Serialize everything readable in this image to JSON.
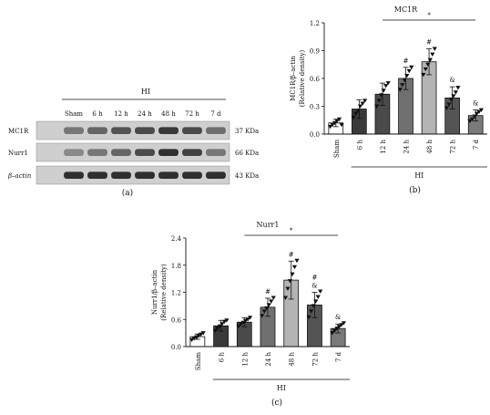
{
  "blot": {
    "group_label": "HI",
    "lanes": [
      "Sham",
      "6 h",
      "12 h",
      "24 h",
      "48 h",
      "72 h",
      "7 d"
    ],
    "rows": [
      {
        "name": "MC1R",
        "kda": "37 KDa",
        "intensity": [
          0.45,
          0.55,
          0.65,
          0.7,
          0.8,
          0.7,
          0.5
        ]
      },
      {
        "name": "Nurr1",
        "kda": "66 KDa",
        "intensity": [
          0.35,
          0.45,
          0.55,
          0.7,
          0.85,
          0.75,
          0.45
        ]
      },
      {
        "name": "β–actin",
        "kda": "43 KDa",
        "intensity": [
          0.85,
          0.85,
          0.85,
          0.85,
          0.85,
          0.85,
          0.85
        ]
      }
    ],
    "panel_label": "(a)"
  },
  "colors": {
    "Sham": "#ffffff",
    "6 h": "#3a3a3a",
    "12 h": "#4a4a4a",
    "24 h": "#707070",
    "48 h": "#b4b4b4",
    "72 h": "#545454",
    "7 d": "#7a7a7a"
  },
  "chart_data": [
    {
      "type": "bar",
      "title": "MC1R",
      "ylabel_line1": "MC1R/β–actin",
      "ylabel_line2": "(Relative density)",
      "categories": [
        "Sham",
        "6 h",
        "12 h",
        "24 h",
        "48 h",
        "72 h",
        "7 d"
      ],
      "values": [
        0.12,
        0.27,
        0.43,
        0.6,
        0.78,
        0.39,
        0.2
      ],
      "errors": [
        0.04,
        0.1,
        0.12,
        0.12,
        0.14,
        0.12,
        0.06
      ],
      "points": [
        [
          0.08,
          0.1,
          0.12,
          0.14,
          0.16,
          0.1
        ],
        [
          0.18,
          0.22,
          0.25,
          0.3,
          0.33,
          0.36
        ],
        [
          0.3,
          0.36,
          0.42,
          0.47,
          0.52,
          0.55
        ],
        [
          0.48,
          0.53,
          0.58,
          0.63,
          0.68,
          0.72
        ],
        [
          0.64,
          0.7,
          0.75,
          0.8,
          0.86,
          0.92
        ],
        [
          0.28,
          0.32,
          0.37,
          0.41,
          0.45,
          0.5
        ],
        [
          0.14,
          0.16,
          0.19,
          0.22,
          0.24,
          0.26
        ]
      ],
      "yticks": [
        "0.0",
        "0.3",
        "0.6",
        "0.9",
        "1.2"
      ],
      "ylim": [
        0,
        1.2
      ],
      "markers": [
        "",
        "",
        "",
        "#",
        "#",
        "&",
        "&"
      ],
      "sig_label": "*",
      "xgroup_label": "HI",
      "panel_label": "(b)"
    },
    {
      "type": "bar",
      "title": "Nurr1",
      "ylabel_line1": "Nurr1/β–actin",
      "ylabel_line2": "(Relative density)",
      "categories": [
        "Sham",
        "6 h",
        "12 h",
        "24 h",
        "48 h",
        "72 h",
        "7 d"
      ],
      "values": [
        0.22,
        0.46,
        0.54,
        0.87,
        1.47,
        0.92,
        0.4
      ],
      "errors": [
        0.06,
        0.12,
        0.1,
        0.2,
        0.42,
        0.28,
        0.1
      ],
      "points": [
        [
          0.15,
          0.18,
          0.21,
          0.24,
          0.27,
          0.3
        ],
        [
          0.35,
          0.4,
          0.45,
          0.5,
          0.55,
          0.58
        ],
        [
          0.45,
          0.5,
          0.53,
          0.57,
          0.6,
          0.64
        ],
        [
          0.68,
          0.78,
          0.85,
          0.92,
          1.0,
          1.08
        ],
        [
          1.08,
          1.28,
          1.45,
          1.6,
          1.76,
          1.9
        ],
        [
          0.65,
          0.78,
          0.9,
          1.0,
          1.1,
          1.22
        ],
        [
          0.3,
          0.35,
          0.4,
          0.44,
          0.48,
          0.52
        ]
      ],
      "yticks": [
        "0.0",
        "0.6",
        "1.2",
        "1.8",
        "2.4"
      ],
      "ylim": [
        0,
        2.4
      ],
      "markers": [
        "",
        "",
        "",
        "#",
        "#",
        "&",
        "&"
      ],
      "markers2": [
        "",
        "",
        "",
        "",
        "",
        "#",
        ""
      ],
      "sig_label": "*",
      "xgroup_label": "HI",
      "panel_label": "(c)"
    }
  ]
}
